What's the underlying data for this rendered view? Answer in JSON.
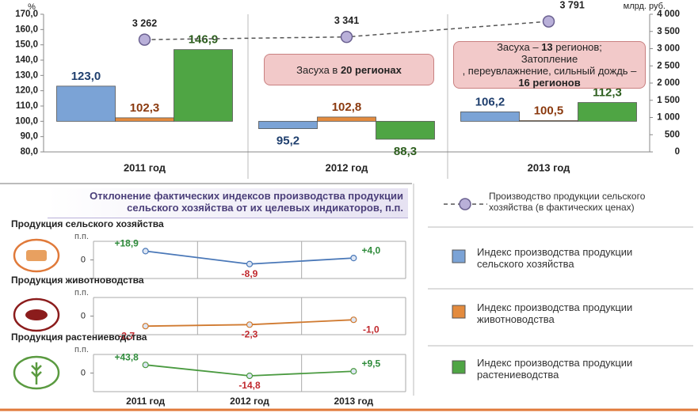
{
  "chart_data": [
    {
      "type": "bar",
      "categories": [
        "2011 год",
        "2012 год",
        "2013 год"
      ],
      "ylabel": "%",
      "y2label": "млрд. руб.",
      "ylim": [
        80,
        170
      ],
      "yticks": [
        {
          "value": 80,
          "label": "80,0"
        },
        {
          "value": 90,
          "label": "90,0"
        },
        {
          "value": 100,
          "label": "100,0"
        },
        {
          "value": 110,
          "label": "110,0"
        },
        {
          "value": 120,
          "label": "120,0"
        },
        {
          "value": 130,
          "label": "130,0"
        },
        {
          "value": 140,
          "label": "140,0"
        },
        {
          "value": 150,
          "label": "150,0"
        },
        {
          "value": 160,
          "label": "160,0"
        },
        {
          "value": 170,
          "label": "170,0"
        }
      ],
      "y2lim": [
        0,
        4000
      ],
      "y2ticks": [
        0,
        500,
        {
          "value": 1000,
          "label": "1 000"
        },
        {
          "value": 1500,
          "label": "1 500"
        },
        {
          "value": 2000,
          "label": "2 000"
        },
        {
          "value": 2500,
          "label": "2 500"
        },
        {
          "value": 3000,
          "label": "3 000"
        },
        {
          "value": 3500,
          "label": "3 500"
        },
        {
          "value": 4000,
          "label": "4 000"
        }
      ],
      "baseline": 100,
      "series": [
        {
          "name": "Индекс производства продукции сельского хозяйства",
          "color": "#7ba3d6",
          "label_color": "#1f3f6e",
          "values": [
            123.0,
            95.2,
            106.2
          ],
          "value_labels": [
            "123,0",
            "95,2",
            "106,2"
          ]
        },
        {
          "name": "Индекс производства продукции животноводства",
          "color": "#e38b3e",
          "label_color": "#8b3a0f",
          "values": [
            102.3,
            102.8,
            100.5
          ],
          "value_labels": [
            "102,3",
            "102,8",
            "100,5"
          ]
        },
        {
          "name": "Индекс производства продукции растениеводства",
          "color": "#4fa544",
          "label_color": "#2d5e1e",
          "values": [
            146.9,
            88.3,
            112.3
          ],
          "value_labels": [
            "146,9",
            "88,3",
            "112,3"
          ]
        },
        {
          "name": "Производство продукции сельского хозяйства (в фактических ценах)",
          "type": "line",
          "axis": "y2",
          "color": "#b9b0d9",
          "values": [
            3262,
            3341,
            3791
          ],
          "value_labels": [
            "3 262",
            "3 341",
            "3 791"
          ]
        }
      ],
      "annotations": [
        {
          "lines": [
            [
              {
                "text": "Засуха в "
              },
              {
                "text": "20 регионах",
                "bold": true
              }
            ]
          ]
        },
        {
          "lines": [
            [
              {
                "text": "Засуха – "
              },
              {
                "text": "13",
                "bold": true
              },
              {
                "text": " регионов;"
              }
            ],
            [
              {
                "text": "Затопление"
              }
            ],
            [
              {
                "text": ", переувлажнение, сильный дождь –"
              }
            ],
            [
              {
                "text": "16 регионов",
                "bold": true
              }
            ]
          ]
        }
      ]
    },
    {
      "type": "line",
      "title": "Продукция сельского хозяйства",
      "ylabel": "п.п.",
      "ylim": [
        -40,
        40
      ],
      "yticks": [
        0
      ],
      "color": "#4a78b8",
      "values": [
        18.9,
        -8.9,
        4.0
      ],
      "value_labels": [
        "+18,9",
        "-8,9",
        "+4,0"
      ]
    },
    {
      "type": "line",
      "title": "Продукция животноводства",
      "ylabel": "п.п.",
      "ylim": [
        -5,
        5
      ],
      "yticks": [
        0
      ],
      "color": "#d07a30",
      "values": [
        -2.7,
        -2.3,
        -1.0
      ],
      "value_labels": [
        "-2,7",
        "-2,3",
        "-1,0"
      ]
    },
    {
      "type": "line",
      "title": "Продукция растениеводства",
      "ylabel": "п.п.",
      "ylim": [
        -100,
        100
      ],
      "yticks": [
        0
      ],
      "color": "#4a9a40",
      "categories": [
        "2011 год",
        "2012 год",
        "2013 год"
      ],
      "values": [
        43.8,
        -14.8,
        9.5
      ],
      "value_labels": [
        "+43,8",
        "-14,8",
        "+9,5"
      ]
    }
  ],
  "deviation_title": "Отклонение фактических индексов производства продукции сельского хозяйства от их целевых индикаторов, п.п."
}
